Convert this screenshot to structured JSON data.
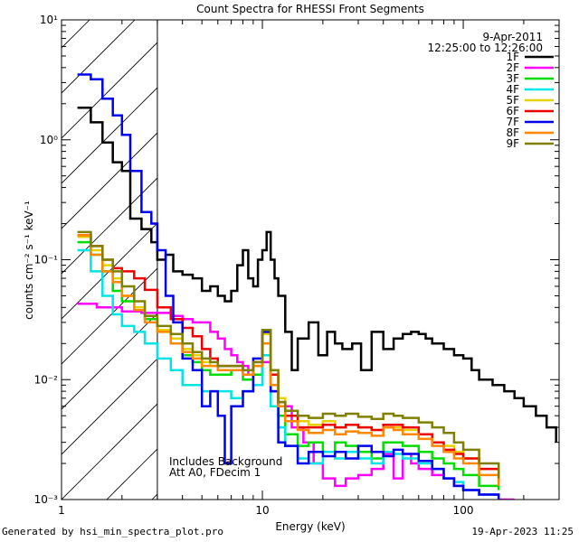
{
  "chart_data": {
    "type": "line",
    "title": "Count Spectra for RHESSI Front Segments",
    "xlabel": "Energy (keV)",
    "ylabel": "counts cm⁻² s⁻¹ keV⁻¹",
    "xscale": "log",
    "yscale": "log",
    "xlim": [
      1,
      300
    ],
    "ylim": [
      0.001,
      10
    ],
    "x_ticks": [
      {
        "value": 1,
        "label": "1"
      },
      {
        "value": 10,
        "label": "10"
      },
      {
        "value": 100,
        "label": "100"
      }
    ],
    "y_ticks": [
      {
        "value": 0.001,
        "label": "10⁻³"
      },
      {
        "value": 0.01,
        "label": "10⁻²"
      },
      {
        "value": 0.1,
        "label": "10⁻¹"
      },
      {
        "value": 1,
        "label": "10⁰"
      },
      {
        "value": 10,
        "label": "10¹"
      }
    ],
    "hatched_region_x": [
      1,
      3
    ],
    "date": "9-Apr-2011",
    "time_range": "12:25:00 to 12:26:00",
    "annotation_line1": "Includes Background",
    "annotation_line2": "Att A0, FDecim 1",
    "legend_position": "top-right",
    "series": [
      {
        "name": "1F",
        "color": "#000000",
        "x": [
          1.2,
          1.4,
          1.6,
          1.8,
          2.0,
          2.2,
          2.5,
          2.8,
          3.0,
          3.3,
          3.6,
          4.0,
          4.5,
          5.0,
          5.5,
          6.0,
          6.5,
          7.0,
          7.5,
          8.0,
          8.5,
          9.0,
          9.5,
          10.0,
          10.5,
          11.0,
          11.5,
          12.0,
          13,
          14,
          15,
          17,
          19,
          21,
          23,
          25,
          28,
          31,
          35,
          40,
          45,
          50,
          55,
          60,
          65,
          70,
          80,
          90,
          100,
          110,
          120,
          140,
          160,
          180,
          200,
          230,
          260,
          290
        ],
        "y": [
          1.85,
          1.4,
          0.95,
          0.65,
          0.55,
          0.22,
          0.18,
          0.14,
          0.1,
          0.11,
          0.08,
          0.075,
          0.07,
          0.055,
          0.06,
          0.05,
          0.045,
          0.055,
          0.09,
          0.12,
          0.07,
          0.06,
          0.1,
          0.12,
          0.17,
          0.1,
          0.07,
          0.05,
          0.025,
          0.012,
          0.022,
          0.03,
          0.016,
          0.025,
          0.02,
          0.018,
          0.02,
          0.012,
          0.025,
          0.018,
          0.022,
          0.024,
          0.025,
          0.024,
          0.022,
          0.02,
          0.018,
          0.016,
          0.015,
          0.012,
          0.01,
          0.009,
          0.008,
          0.007,
          0.006,
          0.005,
          0.004,
          0.003
        ]
      },
      {
        "name": "2F",
        "color": "#ff00ff",
        "x": [
          1.2,
          1.5,
          2.0,
          2.5,
          3.0,
          3.5,
          4.0,
          4.5,
          5.0,
          5.5,
          6.0,
          6.5,
          7.0,
          7.5,
          8.0,
          8.5,
          9.0,
          10,
          11,
          12,
          14,
          16,
          18,
          20,
          23,
          26,
          30,
          35,
          40,
          45,
          50,
          55,
          60,
          70,
          80,
          90,
          100,
          120,
          150,
          180
        ],
        "y": [
          0.043,
          0.04,
          0.037,
          0.036,
          0.036,
          0.034,
          0.032,
          0.03,
          0.03,
          0.025,
          0.022,
          0.018,
          0.016,
          0.014,
          0.013,
          0.011,
          0.011,
          0.014,
          0.008,
          0.006,
          0.004,
          0.003,
          0.002,
          0.0015,
          0.0013,
          0.0015,
          0.0016,
          0.0018,
          0.0024,
          0.0015,
          0.0024,
          0.002,
          0.0018,
          0.0016,
          0.0015,
          0.0013,
          0.0012,
          0.0011,
          0.001,
          0.001
        ]
      },
      {
        "name": "3F",
        "color": "#00dd00",
        "x": [
          1.2,
          1.4,
          1.6,
          1.8,
          2.0,
          2.3,
          2.6,
          3.0,
          3.5,
          4.0,
          4.5,
          5.0,
          5.5,
          6.0,
          7.0,
          8.0,
          9.0,
          10,
          11,
          12,
          13,
          15,
          17,
          20,
          23,
          26,
          30,
          35,
          40,
          45,
          50,
          60,
          70,
          80,
          90,
          100,
          120,
          150
        ],
        "y": [
          0.14,
          0.11,
          0.08,
          0.055,
          0.045,
          0.038,
          0.032,
          0.026,
          0.02,
          0.016,
          0.014,
          0.012,
          0.011,
          0.011,
          0.012,
          0.01,
          0.011,
          0.02,
          0.009,
          0.005,
          0.0035,
          0.0028,
          0.003,
          0.0025,
          0.003,
          0.0028,
          0.0025,
          0.0022,
          0.003,
          0.003,
          0.0028,
          0.0025,
          0.0022,
          0.002,
          0.0018,
          0.0016,
          0.0013,
          0.0012
        ]
      },
      {
        "name": "4F",
        "color": "#00e5e5",
        "x": [
          1.2,
          1.4,
          1.6,
          1.8,
          2.0,
          2.3,
          2.6,
          3.0,
          3.5,
          4.0,
          4.5,
          5.0,
          5.5,
          6.0,
          7.0,
          8.0,
          9.0,
          10,
          11,
          12,
          13,
          15,
          17,
          20,
          23,
          26,
          30,
          35,
          40,
          45,
          50,
          60,
          70,
          80,
          90,
          100,
          120,
          150
        ],
        "y": [
          0.12,
          0.08,
          0.05,
          0.035,
          0.028,
          0.025,
          0.02,
          0.015,
          0.012,
          0.009,
          0.009,
          0.008,
          0.008,
          0.008,
          0.007,
          0.008,
          0.009,
          0.016,
          0.006,
          0.004,
          0.0028,
          0.0022,
          0.002,
          0.0025,
          0.0022,
          0.0025,
          0.0022,
          0.002,
          0.0025,
          0.0024,
          0.0022,
          0.002,
          0.0018,
          0.0015,
          0.0014,
          0.0012,
          0.0011,
          0.001
        ]
      },
      {
        "name": "5F",
        "color": "#e5d200",
        "x": [
          1.2,
          1.4,
          1.6,
          1.8,
          2.0,
          2.3,
          2.6,
          3.0,
          3.5,
          4.0,
          4.5,
          5.0,
          5.5,
          6.0,
          7.0,
          8.0,
          9.0,
          10,
          11,
          12,
          13,
          15,
          17,
          20,
          23,
          26,
          30,
          35,
          40,
          45,
          50,
          60,
          70,
          80,
          90,
          100,
          120,
          150
        ],
        "y": [
          0.155,
          0.12,
          0.09,
          0.07,
          0.05,
          0.04,
          0.034,
          0.026,
          0.022,
          0.018,
          0.016,
          0.014,
          0.013,
          0.012,
          0.012,
          0.011,
          0.013,
          0.024,
          0.011,
          0.007,
          0.005,
          0.0045,
          0.0042,
          0.0045,
          0.004,
          0.0042,
          0.004,
          0.0038,
          0.004,
          0.004,
          0.0038,
          0.0035,
          0.003,
          0.0028,
          0.0025,
          0.0022,
          0.0018,
          0.0014
        ]
      },
      {
        "name": "6F",
        "color": "#ee0000",
        "x": [
          1.2,
          1.4,
          1.6,
          1.8,
          2.0,
          2.3,
          2.6,
          3.0,
          3.5,
          4.0,
          4.5,
          5.0,
          5.5,
          6.0,
          7.0,
          8.0,
          9.0,
          10,
          11,
          12,
          13,
          15,
          17,
          20,
          23,
          26,
          30,
          35,
          40,
          45,
          50,
          60,
          70,
          80,
          90,
          100,
          120,
          150
        ],
        "y": [
          0.16,
          0.13,
          0.1,
          0.085,
          0.08,
          0.07,
          0.056,
          0.04,
          0.032,
          0.027,
          0.023,
          0.018,
          0.015,
          0.013,
          0.013,
          0.012,
          0.014,
          0.025,
          0.011,
          0.0065,
          0.005,
          0.004,
          0.004,
          0.0042,
          0.004,
          0.0042,
          0.004,
          0.0038,
          0.0042,
          0.0042,
          0.004,
          0.0035,
          0.003,
          0.0026,
          0.0024,
          0.0022,
          0.0018,
          0.0014
        ]
      },
      {
        "name": "7F",
        "color": "#0000ee",
        "x": [
          1.2,
          1.4,
          1.6,
          1.8,
          2.0,
          2.2,
          2.5,
          2.8,
          3.0,
          3.3,
          3.6,
          4.0,
          4.5,
          5.0,
          5.5,
          6.0,
          6.5,
          7.0,
          8.0,
          9.0,
          10,
          11,
          12,
          13,
          15,
          17,
          20,
          23,
          26,
          30,
          35,
          40,
          45,
          50,
          60,
          70,
          80,
          90,
          100,
          120,
          150
        ],
        "y": [
          3.5,
          3.2,
          2.2,
          1.6,
          1.1,
          0.55,
          0.25,
          0.2,
          0.12,
          0.05,
          0.03,
          0.015,
          0.012,
          0.006,
          0.008,
          0.005,
          0.002,
          0.006,
          0.008,
          0.015,
          0.025,
          0.008,
          0.003,
          0.0028,
          0.002,
          0.0025,
          0.0023,
          0.0025,
          0.0022,
          0.0028,
          0.0025,
          0.0023,
          0.0026,
          0.0024,
          0.0021,
          0.0018,
          0.0015,
          0.0013,
          0.0012,
          0.0011,
          0.001
        ]
      },
      {
        "name": "8F",
        "color": "#ff8800",
        "x": [
          1.2,
          1.4,
          1.6,
          1.8,
          2.0,
          2.3,
          2.6,
          3.0,
          3.5,
          4.0,
          4.5,
          5.0,
          5.5,
          6.0,
          7.0,
          8.0,
          9.0,
          10,
          11,
          12,
          13,
          15,
          17,
          20,
          23,
          26,
          30,
          35,
          40,
          45,
          50,
          60,
          70,
          80,
          90,
          100,
          120,
          150
        ],
        "y": [
          0.16,
          0.11,
          0.08,
          0.065,
          0.05,
          0.038,
          0.03,
          0.025,
          0.02,
          0.017,
          0.015,
          0.013,
          0.013,
          0.012,
          0.012,
          0.011,
          0.013,
          0.02,
          0.009,
          0.006,
          0.0045,
          0.0038,
          0.0036,
          0.0038,
          0.0035,
          0.0037,
          0.0036,
          0.0034,
          0.004,
          0.0038,
          0.0035,
          0.0032,
          0.0028,
          0.0025,
          0.0022,
          0.002,
          0.0016,
          0.0013
        ]
      },
      {
        "name": "9F",
        "color": "#808000",
        "x": [
          1.2,
          1.4,
          1.6,
          1.8,
          2.0,
          2.3,
          2.6,
          3.0,
          3.5,
          4.0,
          4.5,
          5.0,
          5.5,
          6.0,
          7.0,
          8.0,
          9.0,
          10,
          11,
          12,
          13,
          15,
          17,
          20,
          23,
          26,
          30,
          35,
          40,
          45,
          50,
          60,
          70,
          80,
          90,
          100,
          120,
          150
        ],
        "y": [
          0.17,
          0.13,
          0.1,
          0.08,
          0.06,
          0.045,
          0.034,
          0.028,
          0.024,
          0.02,
          0.017,
          0.015,
          0.014,
          0.013,
          0.013,
          0.012,
          0.014,
          0.026,
          0.012,
          0.0065,
          0.0055,
          0.005,
          0.0048,
          0.0052,
          0.005,
          0.0052,
          0.0049,
          0.0047,
          0.0052,
          0.005,
          0.0048,
          0.0044,
          0.004,
          0.0036,
          0.003,
          0.0026,
          0.002,
          0.0015
        ]
      }
    ]
  },
  "footer": {
    "generated_by": "Generated by hsi_min_spectra_plot.pro",
    "timestamp": "19-Apr-2023 11:25"
  }
}
